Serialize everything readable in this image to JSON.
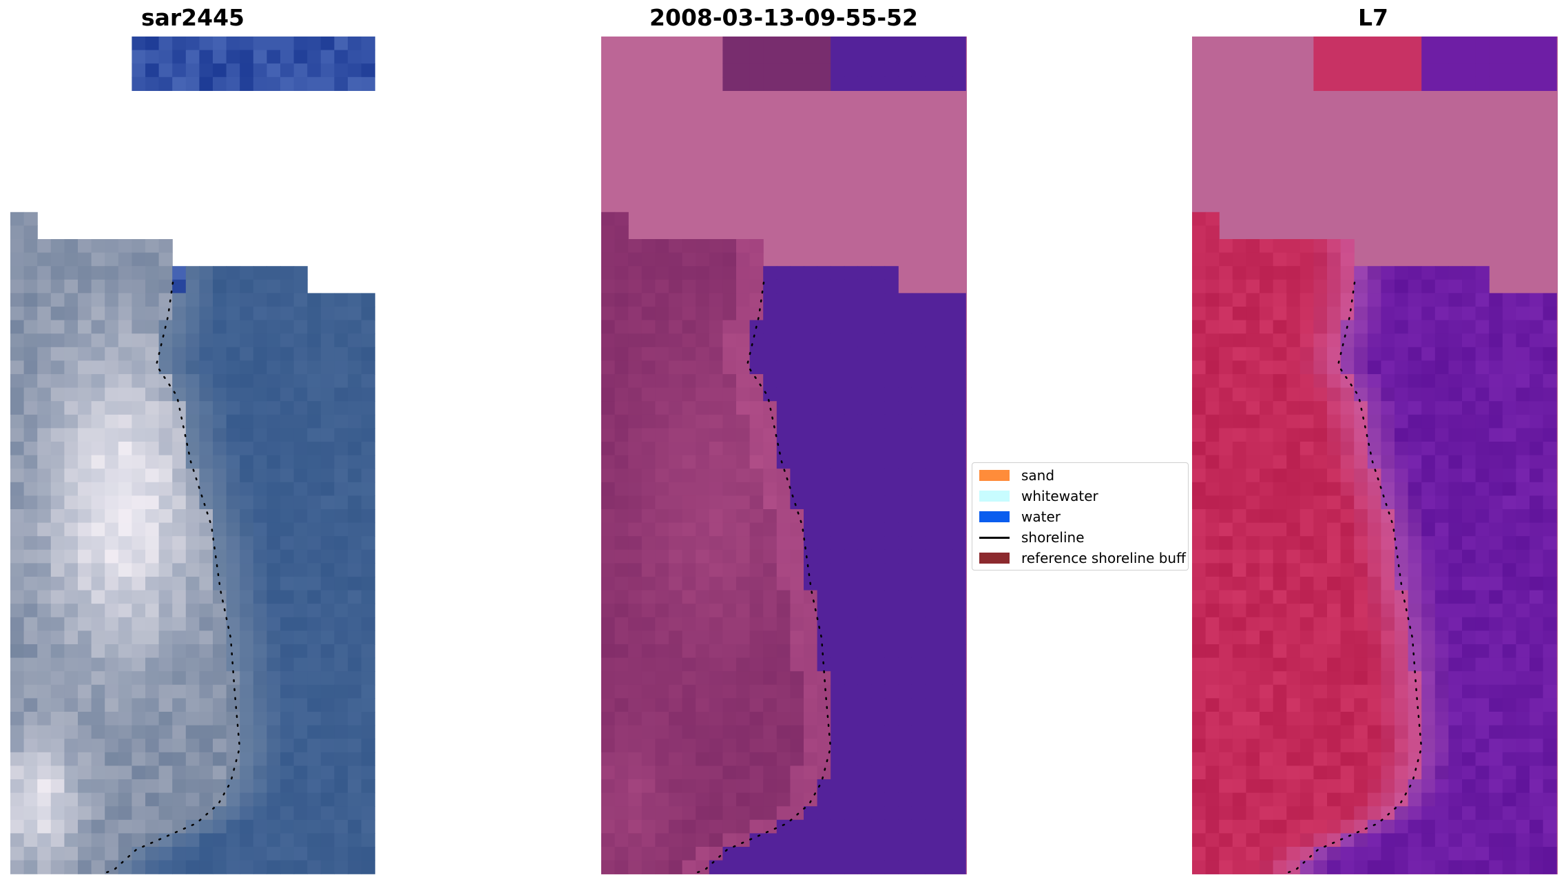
{
  "panels": [
    {
      "title": "sar2445",
      "style": "rgb"
    },
    {
      "title": "2008-03-13-09-55-52",
      "style": "classified"
    },
    {
      "title": "L7",
      "style": "index"
    }
  ],
  "legend": {
    "entries": [
      {
        "label": "sand",
        "kind": "patch",
        "color": "#ff8c3a"
      },
      {
        "label": "whitewater",
        "kind": "patch",
        "color": "#c8fcff"
      },
      {
        "label": "water",
        "kind": "patch",
        "color": "#0a5dee"
      },
      {
        "label": "shoreline",
        "kind": "line",
        "color": "#000000"
      },
      {
        "label": "reference shoreline buff",
        "kind": "patch",
        "color": "#8c2a2e"
      }
    ]
  },
  "colors": {
    "nodata_magenta": "#bc6696",
    "water_purple": "#54229a",
    "land_purple": "#82326e",
    "sar_water_blue": "#3b5e8e",
    "l7_land_red": "#c42a5a",
    "l7_water_violet": "#6c1ca4"
  }
}
